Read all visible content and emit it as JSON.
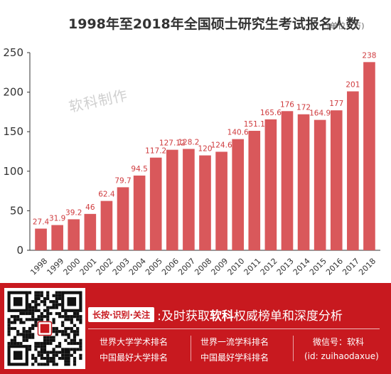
{
  "chart_data": {
    "type": "bar",
    "title": "1998年至2018年全国硕士研究生考试报名人数",
    "unit": "(单位：万)",
    "categories": [
      "1998",
      "1999",
      "2000",
      "2001",
      "2002",
      "2003",
      "2004",
      "2005",
      "2006",
      "2007",
      "2008",
      "2009",
      "2010",
      "2011",
      "2012",
      "2013",
      "2014",
      "2015",
      "2016",
      "2017",
      "2018"
    ],
    "values": [
      27.4,
      31.9,
      39.2,
      46,
      62.4,
      79.7,
      94.5,
      117.2,
      127.12,
      128.2,
      120,
      124.6,
      140.6,
      151.1,
      165.6,
      176,
      172,
      164.9,
      177,
      201,
      238
    ],
    "value_labels": [
      "27.4",
      "31.9",
      "39.2",
      "46",
      "62.4",
      "79.7",
      "94.5",
      "117.2",
      "127.12",
      "128.2",
      "120",
      "124.6",
      "140.6",
      "151.1",
      "165.6",
      "176",
      "172",
      "164.9",
      "177",
      "201",
      "238"
    ],
    "ylim": [
      0,
      250
    ],
    "yticks": [
      "0",
      "50",
      "100",
      "150",
      "200",
      "250"
    ],
    "xlabel": "",
    "ylabel": "",
    "grid": false,
    "bar_color": "#d9585b",
    "label_color": "#cf3b3e"
  },
  "watermark": "软科制作",
  "footer": {
    "badge": "长按·识别·关注",
    "tagline_prefix": ":及时获取",
    "tagline_brand": "软科",
    "tagline_suffix": "权威榜单和深度分析",
    "links": {
      "col1_row1": "世界大学学术排名",
      "col1_row2": "中国最好大学排名",
      "col2_row1": "世界一流学科排名",
      "col2_row2": "中国最好学科排名",
      "wechat": "微信号：软科",
      "wechat_id": "(id: zuihaodaxue)"
    },
    "colors": {
      "background": "#c8191f"
    },
    "icons": {
      "qr": "qr-code-icon"
    }
  }
}
